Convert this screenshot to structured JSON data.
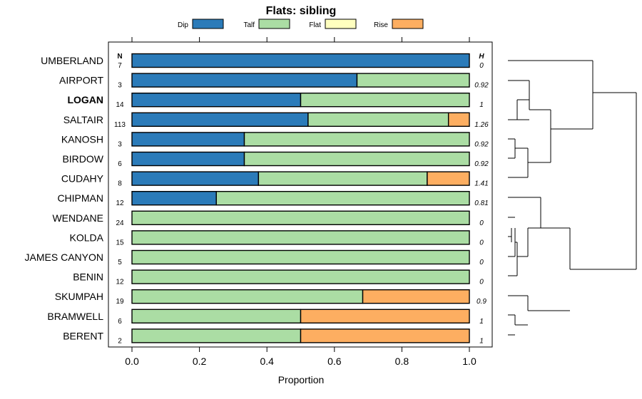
{
  "chart_data": {
    "type": "bar",
    "orientation": "horizontal",
    "stacked": true,
    "title": "Flats: sibling",
    "xlabel": "Proportion",
    "ylabel": "",
    "xlim": [
      0,
      1
    ],
    "x_ticks": [
      "0.0",
      "0.2",
      "0.4",
      "0.6",
      "0.8",
      "1.0"
    ],
    "x_tick_values": [
      0,
      0.2,
      0.4,
      0.6,
      0.8,
      1.0
    ],
    "n_header": "N",
    "h_header": "H",
    "legend_position": "top",
    "series": [
      {
        "name": "Dip",
        "color": "#2b7bb9"
      },
      {
        "name": "Talf",
        "color": "#abdda4"
      },
      {
        "name": "Flat",
        "color": "#ffffbf"
      },
      {
        "name": "Rise",
        "color": "#fdae61"
      }
    ],
    "categories": [
      {
        "label": "UMBERLAND",
        "bold": false,
        "n": "7",
        "h": "0",
        "values": [
          1.0,
          0.0,
          0.0,
          0.0
        ]
      },
      {
        "label": "AIRPORT",
        "bold": false,
        "n": "3",
        "h": "0.92",
        "values": [
          0.667,
          0.333,
          0.0,
          0.0
        ]
      },
      {
        "label": "LOGAN",
        "bold": true,
        "n": "14",
        "h": "1",
        "values": [
          0.5,
          0.5,
          0.0,
          0.0
        ]
      },
      {
        "label": "SALTAIR",
        "bold": false,
        "n": "113",
        "h": "1.26",
        "values": [
          0.522,
          0.416,
          0.0,
          0.062
        ]
      },
      {
        "label": "KANOSH",
        "bold": false,
        "n": "3",
        "h": "0.92",
        "values": [
          0.333,
          0.667,
          0.0,
          0.0
        ]
      },
      {
        "label": "BIRDOW",
        "bold": false,
        "n": "6",
        "h": "0.92",
        "values": [
          0.333,
          0.667,
          0.0,
          0.0
        ]
      },
      {
        "label": "CUDAHY",
        "bold": false,
        "n": "8",
        "h": "1.41",
        "values": [
          0.375,
          0.5,
          0.0,
          0.125
        ]
      },
      {
        "label": "CHIPMAN",
        "bold": false,
        "n": "12",
        "h": "0.81",
        "values": [
          0.25,
          0.75,
          0.0,
          0.0
        ]
      },
      {
        "label": "WENDANE",
        "bold": false,
        "n": "24",
        "h": "0",
        "values": [
          0.0,
          1.0,
          0.0,
          0.0
        ]
      },
      {
        "label": "KOLDA",
        "bold": false,
        "n": "15",
        "h": "0",
        "values": [
          0.0,
          1.0,
          0.0,
          0.0
        ]
      },
      {
        "label": "JAMES CANYON",
        "bold": false,
        "n": "5",
        "h": "0",
        "values": [
          0.0,
          1.0,
          0.0,
          0.0
        ]
      },
      {
        "label": "BENIN",
        "bold": false,
        "n": "12",
        "h": "0",
        "values": [
          0.0,
          1.0,
          0.0,
          0.0
        ]
      },
      {
        "label": "SKUMPAH",
        "bold": false,
        "n": "19",
        "h": "0.9",
        "values": [
          0.0,
          0.684,
          0.0,
          0.316
        ]
      },
      {
        "label": "BRAMWELL",
        "bold": false,
        "n": "6",
        "h": "1",
        "values": [
          0.0,
          0.5,
          0.0,
          0.5
        ]
      },
      {
        "label": "BERENT",
        "bold": false,
        "n": "2",
        "h": "1",
        "values": [
          0.0,
          0.5,
          0.0,
          0.5
        ]
      }
    ],
    "dendrogram": {
      "description": "hierarchical clustering of the rows shown at right",
      "merges": [
        {
          "a": "AIRPORT",
          "b": "LOGAN",
          "height": 0.12
        },
        {
          "a": "KANOSH",
          "b": "BIRDOW",
          "height": 0.03
        },
        {
          "a": "KOLDA",
          "b": "JAMES CANYON",
          "height": 0.05
        },
        {
          "a": "BRAMWELL",
          "b": "BERENT",
          "height": 0.02
        }
      ]
    }
  }
}
